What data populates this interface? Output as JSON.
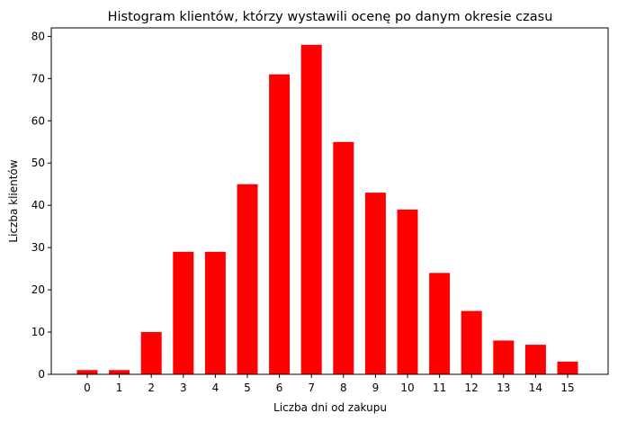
{
  "chart_data": {
    "type": "bar",
    "title": "Histogram klientów, którzy wystawili ocenę po danym okresie czasu",
    "xlabel": "Liczba dni od zakupu",
    "ylabel": "Liczba klientów",
    "categories": [
      "0",
      "1",
      "2",
      "3",
      "4",
      "5",
      "6",
      "7",
      "8",
      "9",
      "10",
      "11",
      "12",
      "13",
      "14",
      "15"
    ],
    "values": [
      1,
      1,
      10,
      29,
      29,
      45,
      71,
      78,
      55,
      43,
      39,
      24,
      15,
      8,
      7,
      3
    ],
    "ylim": [
      0,
      82
    ],
    "yticks": [
      "0",
      "10",
      "20",
      "30",
      "40",
      "50",
      "60",
      "70",
      "80"
    ],
    "bar_color": "#ff0000",
    "grid": false,
    "legend": "none"
  }
}
